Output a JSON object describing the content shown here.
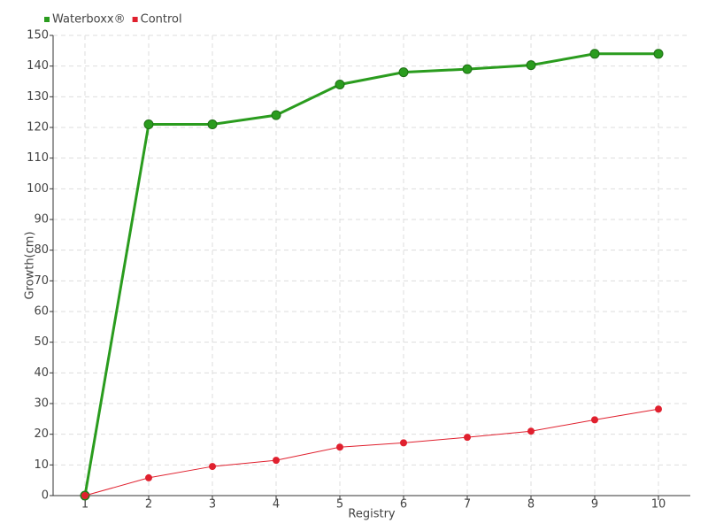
{
  "chart_data": {
    "type": "line",
    "x_label": "Registry",
    "y_label": "Growth(cm)",
    "categories": [
      "1",
      "2",
      "3",
      "4",
      "5",
      "6",
      "7",
      "8",
      "9",
      "10"
    ],
    "series": [
      {
        "name": "Waterboxx®",
        "color": "#2a9c1e",
        "values": [
          0,
          121,
          121,
          124,
          134,
          138,
          139,
          140.3,
          144,
          144
        ]
      },
      {
        "name": "Control",
        "color": "#e0202e",
        "values": [
          0,
          5.8,
          9.5,
          11.5,
          15.8,
          17.2,
          19,
          21,
          24.7,
          28.2
        ]
      }
    ],
    "ylim": [
      0,
      150
    ],
    "yticks": [
      0,
      10,
      20,
      30,
      40,
      50,
      60,
      70,
      80,
      90,
      100,
      110,
      120,
      130,
      140,
      150
    ],
    "grid": true,
    "legend": "top-left"
  }
}
